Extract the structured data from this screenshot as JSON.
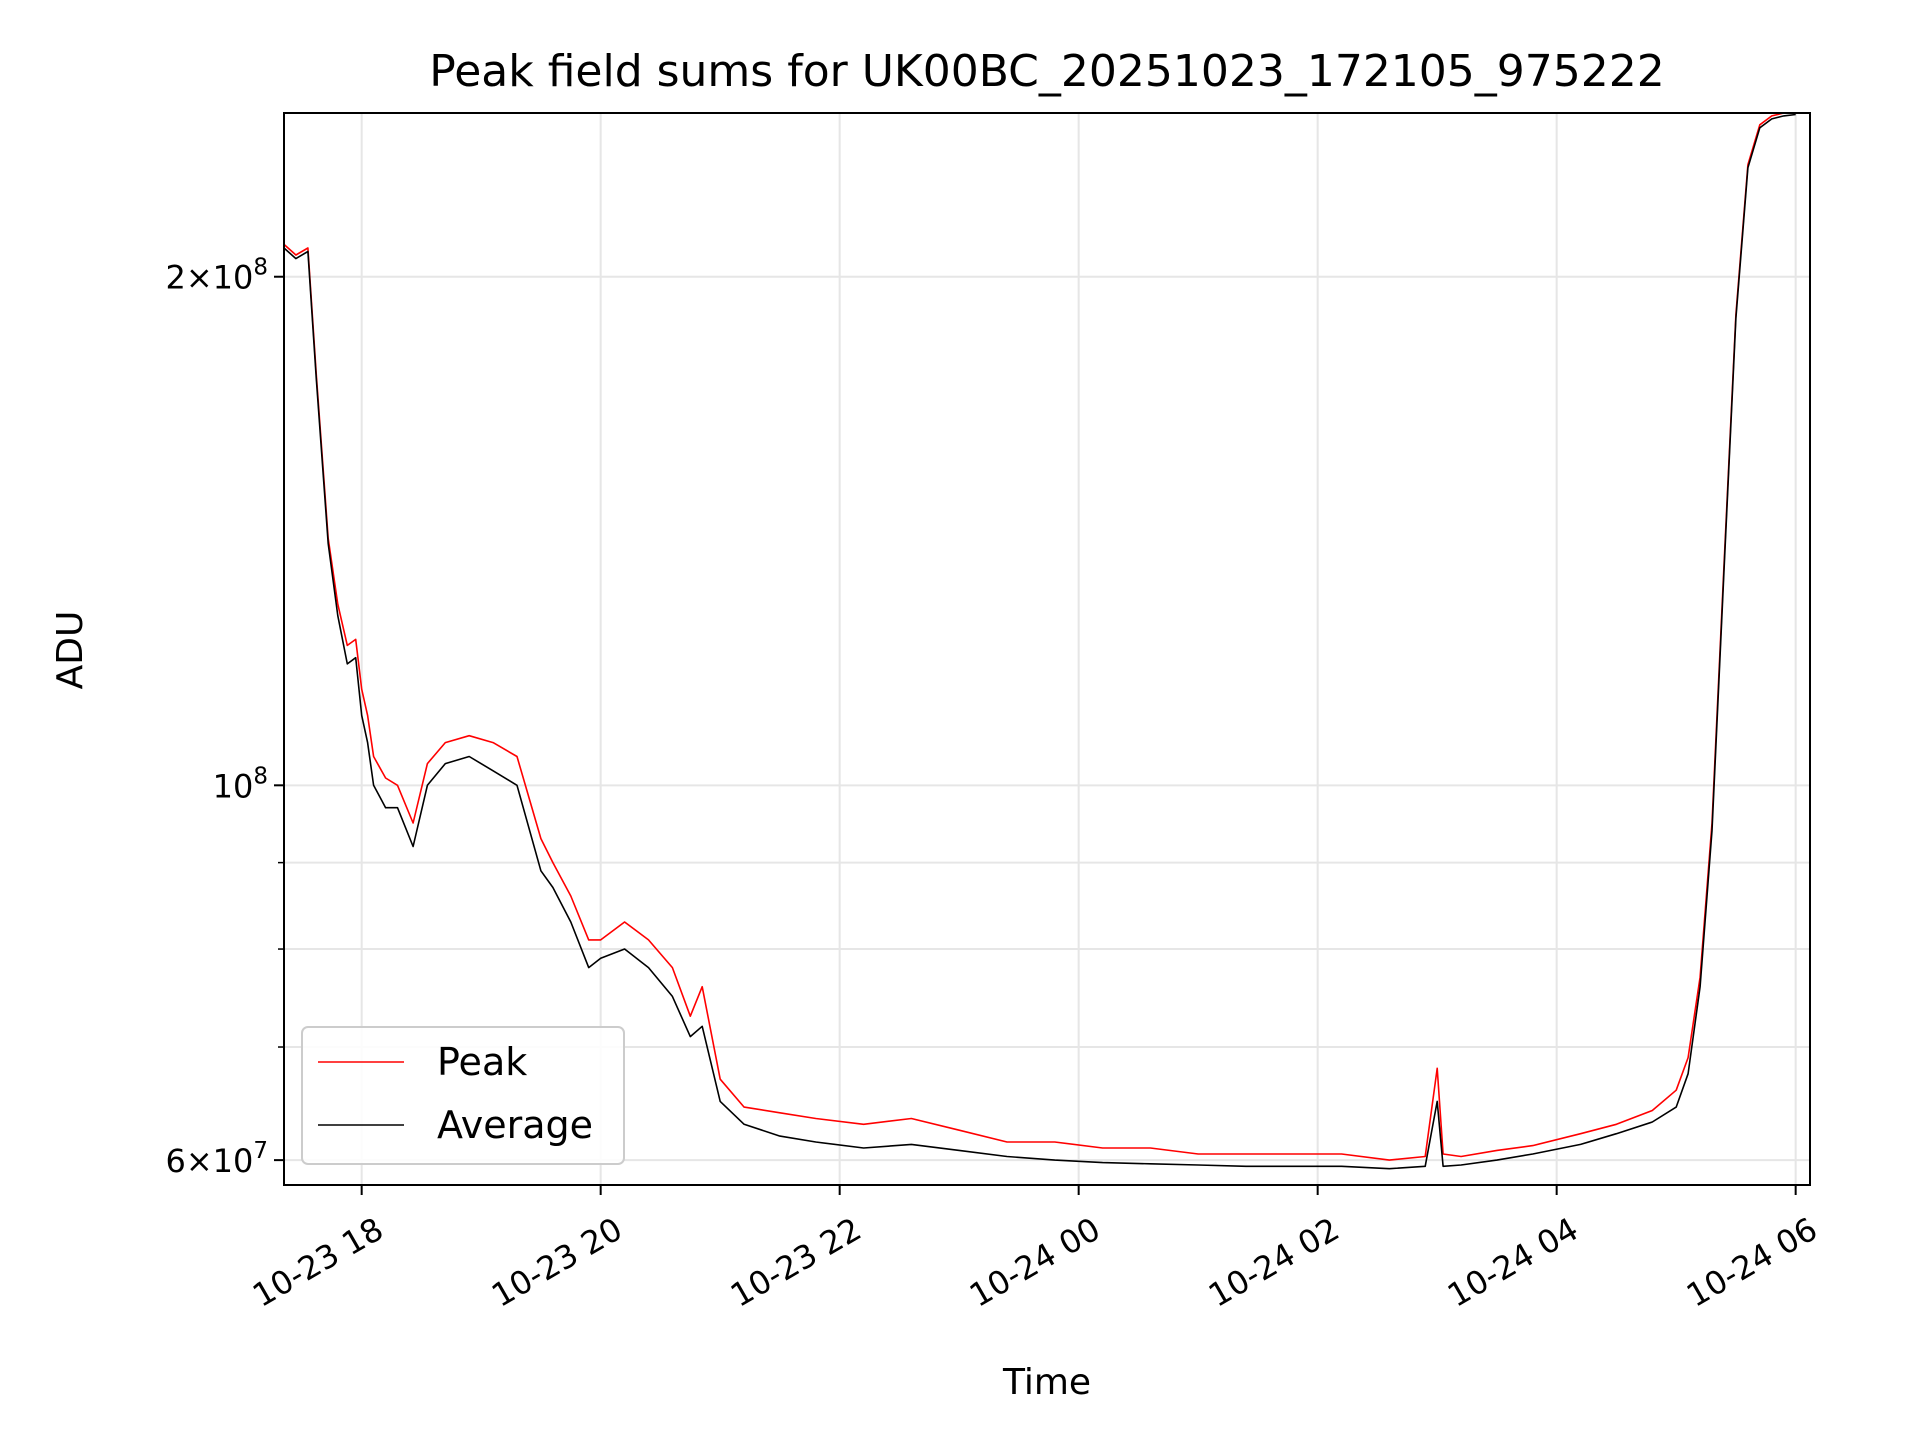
{
  "chart_data": {
    "type": "line",
    "title": "Peak field sums for UK00BC_20251023_172105_975222",
    "xlabel": "Time",
    "ylabel": "ADU",
    "yscale": "log",
    "ylim": [
      58000000,
      250000000
    ],
    "xlim_hours": [
      17.35,
      30.12
    ],
    "grid": true,
    "legend_position": "lower-left",
    "x_ticks": [
      {
        "label": "10-23 18",
        "hour": 18
      },
      {
        "label": "10-23 20",
        "hour": 20
      },
      {
        "label": "10-23 22",
        "hour": 22
      },
      {
        "label": "10-24 00",
        "hour": 24
      },
      {
        "label": "10-24 02",
        "hour": 26
      },
      {
        "label": "10-24 04",
        "hour": 28
      },
      {
        "label": "10-24 06",
        "hour": 30
      }
    ],
    "y_ticks": [
      {
        "base": "6",
        "times": "×",
        "mant": "10",
        "exp": "7",
        "value": 60000000
      },
      {
        "base": "",
        "times": "",
        "mant": "10",
        "exp": "8",
        "value": 100000000
      },
      {
        "base": "2",
        "times": "×",
        "mant": "10",
        "exp": "8",
        "value": 200000000
      }
    ],
    "y_minor_ticks": [
      70000000,
      80000000,
      90000000
    ],
    "series": [
      {
        "name": "Peak",
        "color": "#ff0000",
        "x_hours": [
          17.35,
          17.45,
          17.55,
          17.62,
          17.72,
          17.8,
          17.88,
          17.95,
          18.0,
          18.05,
          18.1,
          18.2,
          18.3,
          18.43,
          18.55,
          18.7,
          18.9,
          19.1,
          19.3,
          19.5,
          19.6,
          19.75,
          19.9,
          20.0,
          20.2,
          20.4,
          20.6,
          20.75,
          20.85,
          21.0,
          21.2,
          21.5,
          21.8,
          22.2,
          22.6,
          23.0,
          23.4,
          23.8,
          24.2,
          24.6,
          25.0,
          25.4,
          25.8,
          26.2,
          26.6,
          26.9,
          27.0,
          27.05,
          27.2,
          27.5,
          27.8,
          28.2,
          28.5,
          28.8,
          29.0,
          29.1,
          29.2,
          29.3,
          29.4,
          29.5,
          29.6,
          29.7,
          29.8,
          29.9,
          30.0
        ],
        "values": [
          209000000,
          206000000,
          208000000,
          175000000,
          140000000,
          128000000,
          121000000,
          122000000,
          114000000,
          110000000,
          104000000,
          101000000,
          100000000,
          95000000,
          103000000,
          106000000,
          107000000,
          106000000,
          104000000,
          93000000,
          90000000,
          86000000,
          81000000,
          81000000,
          83000000,
          81000000,
          78000000,
          73000000,
          76000000,
          67000000,
          64500000,
          64000000,
          63500000,
          63000000,
          63500000,
          62500000,
          61500000,
          61500000,
          61000000,
          61000000,
          60500000,
          60500000,
          60500000,
          60500000,
          60000000,
          60300000,
          68000000,
          60500000,
          60300000,
          60800000,
          61200000,
          62200000,
          63000000,
          64200000,
          66000000,
          69000000,
          77000000,
          95000000,
          135000000,
          190000000,
          233000000,
          246000000,
          249000000,
          250000000,
          250000000
        ]
      },
      {
        "name": "Average",
        "color": "#000000",
        "x_hours": [
          17.35,
          17.45,
          17.55,
          17.62,
          17.72,
          17.8,
          17.88,
          17.95,
          18.0,
          18.05,
          18.1,
          18.2,
          18.3,
          18.43,
          18.55,
          18.7,
          18.9,
          19.1,
          19.3,
          19.5,
          19.6,
          19.75,
          19.9,
          20.0,
          20.2,
          20.4,
          20.6,
          20.75,
          20.85,
          21.0,
          21.2,
          21.5,
          21.8,
          22.2,
          22.6,
          23.0,
          23.4,
          23.8,
          24.2,
          24.6,
          25.0,
          25.4,
          25.8,
          26.2,
          26.6,
          26.9,
          27.0,
          27.05,
          27.2,
          27.5,
          27.8,
          28.2,
          28.5,
          28.8,
          29.0,
          29.1,
          29.2,
          29.3,
          29.4,
          29.5,
          29.6,
          29.7,
          29.8,
          29.9,
          30.0
        ],
        "values": [
          208000000,
          205000000,
          207000000,
          174000000,
          139000000,
          126000000,
          118000000,
          119000000,
          110000000,
          106000000,
          100000000,
          97000000,
          97000000,
          92000000,
          100000000,
          103000000,
          104000000,
          102000000,
          100000000,
          89000000,
          87000000,
          83000000,
          78000000,
          79000000,
          80000000,
          78000000,
          75000000,
          71000000,
          72000000,
          65000000,
          63000000,
          62000000,
          61500000,
          61000000,
          61300000,
          60800000,
          60300000,
          60000000,
          59800000,
          59700000,
          59600000,
          59500000,
          59500000,
          59500000,
          59300000,
          59500000,
          65000000,
          59500000,
          59600000,
          60000000,
          60500000,
          61300000,
          62200000,
          63200000,
          64500000,
          67500000,
          76000000,
          94000000,
          134000000,
          189000000,
          232000000,
          245000000,
          248000000,
          249000000,
          249500000
        ]
      }
    ],
    "legend": [
      {
        "label": "Peak",
        "color": "#ff0000"
      },
      {
        "label": "Average",
        "color": "#000000"
      }
    ]
  }
}
